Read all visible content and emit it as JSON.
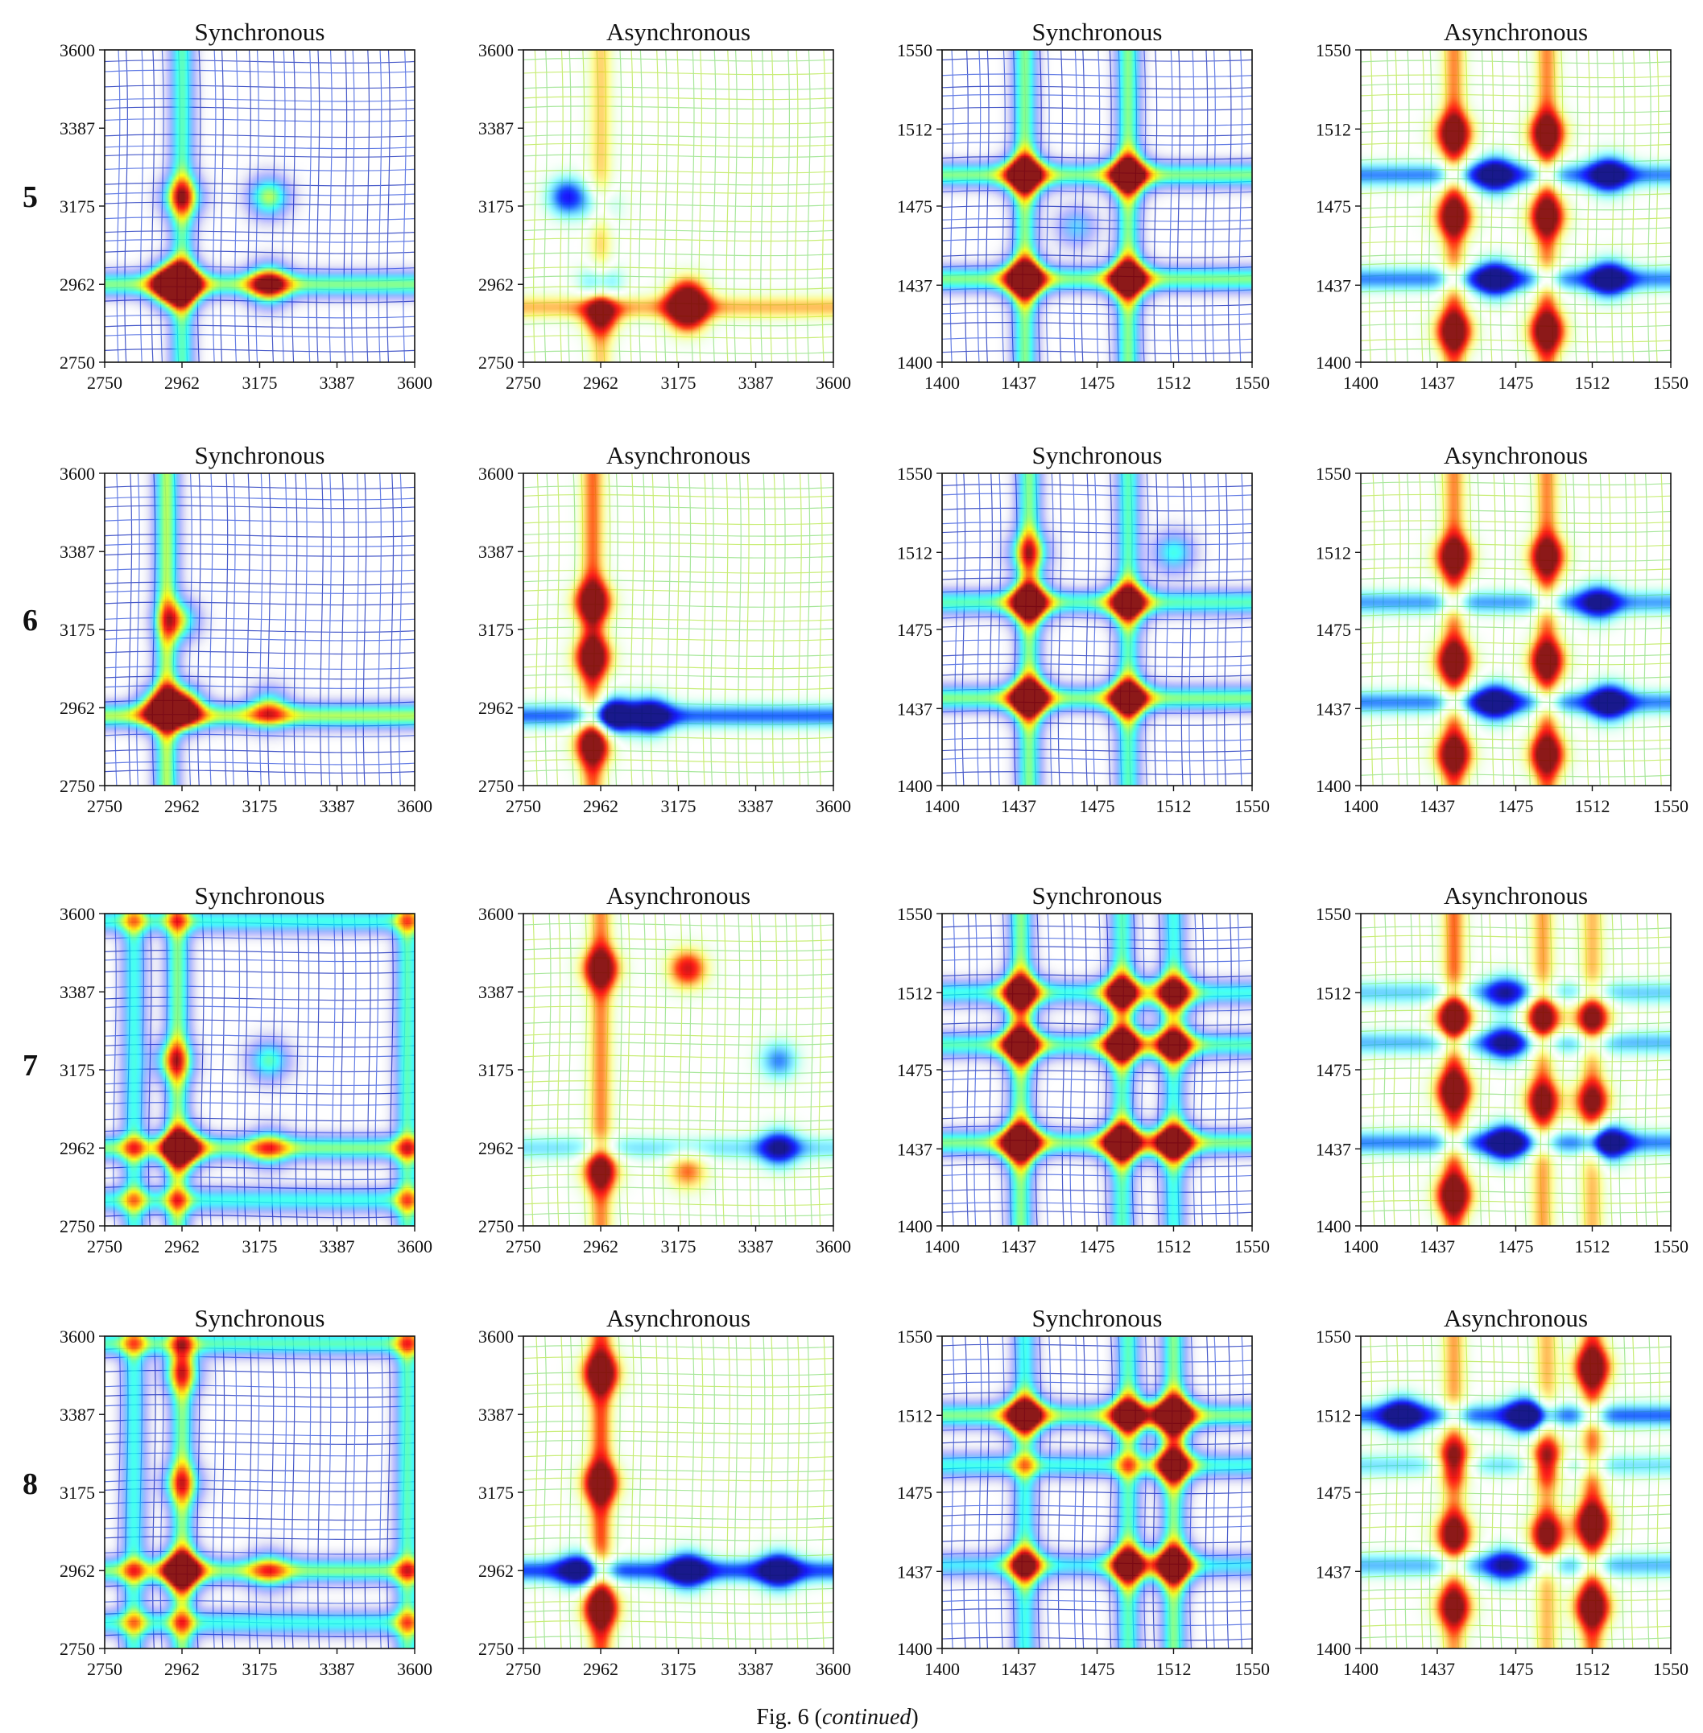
{
  "figure": {
    "caption_prefix": "Fig. 6 (",
    "caption_italic": "continued",
    "caption_suffix": ")"
  },
  "chart_data": [
    {
      "row": "5",
      "type": "heatmap",
      "title": "Synchronous",
      "xlim": [
        2750,
        3600
      ],
      "ylim": [
        2750,
        3600
      ],
      "x_ticks": [
        "2750",
        "2962",
        "3175",
        "3387",
        "3600"
      ],
      "y_ticks": [
        "2750",
        "2962",
        "3175",
        "3387",
        "3600"
      ],
      "line_colors": [
        "#0b24b8",
        "#3355dd"
      ],
      "peaks": [
        [
          2962,
          2962,
          1.0
        ],
        [
          2930,
          2962,
          0.85
        ],
        [
          3200,
          2962,
          0.75
        ],
        [
          2962,
          3200,
          0.6
        ],
        [
          3200,
          3200,
          0.55
        ]
      ],
      "bands_x": [
        [
          2962,
          0.45
        ]
      ],
      "bands_y": [
        [
          2962,
          0.5
        ]
      ]
    },
    {
      "row": "5",
      "type": "heatmap",
      "title": "Asynchronous",
      "xlim": [
        2750,
        3600
      ],
      "ylim": [
        2750,
        3600
      ],
      "x_ticks": [
        "2750",
        "2962",
        "3175",
        "3387",
        "3600"
      ],
      "y_ticks": [
        "2750",
        "2962",
        "3175",
        "3387",
        "3600"
      ],
      "line_colors": [
        "#8be07a",
        "#b7e84a"
      ],
      "peaks": [
        [
          3200,
          2930,
          0.9
        ],
        [
          3200,
          2880,
          0.9
        ],
        [
          2962,
          2880,
          0.75
        ],
        [
          2870,
          3200,
          -0.75
        ],
        [
          2962,
          2962,
          -0.7
        ],
        [
          2962,
          3175,
          -0.4
        ]
      ],
      "bands_x": [
        [
          2962,
          0.4
        ]
      ],
      "bands_y": [
        [
          2900,
          0.45
        ]
      ]
    },
    {
      "row": "5",
      "type": "heatmap",
      "title": "Synchronous",
      "xlim": [
        1400,
        1550
      ],
      "ylim": [
        1400,
        1550
      ],
      "x_ticks": [
        "1400",
        "1437",
        "1475",
        "1512",
        "1550"
      ],
      "y_ticks": [
        "1400",
        "1437",
        "1475",
        "1512",
        "1550"
      ],
      "line_colors": [
        "#0b24b8",
        "#3355dd"
      ],
      "peaks": [
        [
          1440,
          1440,
          1.0
        ],
        [
          1490,
          1440,
          0.9
        ],
        [
          1440,
          1490,
          0.9
        ],
        [
          1490,
          1490,
          0.85
        ],
        [
          1465,
          1465,
          0.3
        ]
      ],
      "bands_x": [
        [
          1440,
          0.5
        ],
        [
          1490,
          0.5
        ]
      ],
      "bands_y": [
        [
          1440,
          0.5
        ],
        [
          1490,
          0.5
        ]
      ]
    },
    {
      "row": "5",
      "type": "heatmap",
      "title": "Asynchronous",
      "xlim": [
        1400,
        1550
      ],
      "ylim": [
        1400,
        1550
      ],
      "x_ticks": [
        "1400",
        "1437",
        "1475",
        "1512",
        "1550"
      ],
      "y_ticks": [
        "1400",
        "1437",
        "1475",
        "1512",
        "1550"
      ],
      "line_colors": [
        "#8be07a",
        "#b7e84a"
      ],
      "peaks": [
        [
          1445,
          1510,
          0.95
        ],
        [
          1490,
          1510,
          0.95
        ],
        [
          1445,
          1470,
          0.9
        ],
        [
          1490,
          1470,
          0.9
        ],
        [
          1445,
          1415,
          0.95
        ],
        [
          1490,
          1415,
          0.95
        ],
        [
          1465,
          1490,
          -0.85
        ],
        [
          1520,
          1490,
          -0.85
        ],
        [
          1465,
          1440,
          -0.85
        ],
        [
          1520,
          1440,
          -0.85
        ]
      ],
      "bands_x": [
        [
          1445,
          0.55
        ],
        [
          1490,
          0.55
        ]
      ],
      "bands_y": [
        [
          1490,
          -0.55
        ],
        [
          1440,
          -0.55
        ]
      ]
    },
    {
      "row": "6",
      "type": "heatmap",
      "title": "Synchronous",
      "xlim": [
        2750,
        3600
      ],
      "ylim": [
        2750,
        3600
      ],
      "x_ticks": [
        "2750",
        "2962",
        "3175",
        "3387",
        "3600"
      ],
      "y_ticks": [
        "2750",
        "2962",
        "3175",
        "3387",
        "3600"
      ],
      "line_colors": [
        "#0b24b8",
        "#3355dd"
      ],
      "peaks": [
        [
          2962,
          2962,
          1.0
        ],
        [
          2900,
          2962,
          0.75
        ],
        [
          2950,
          3200,
          0.55
        ],
        [
          3200,
          2962,
          0.45
        ]
      ],
      "bands_x": [
        [
          2920,
          0.55
        ]
      ],
      "bands_y": [
        [
          2940,
          0.55
        ]
      ]
    },
    {
      "row": "6",
      "type": "heatmap",
      "title": "Asynchronous",
      "xlim": [
        2750,
        3600
      ],
      "ylim": [
        2750,
        3600
      ],
      "x_ticks": [
        "2750",
        "2962",
        "3175",
        "3387",
        "3600"
      ],
      "y_ticks": [
        "2750",
        "2962",
        "3175",
        "3387",
        "3600"
      ],
      "line_colors": [
        "#8be07a",
        "#b7e84a"
      ],
      "peaks": [
        [
          2940,
          3250,
          1.0
        ],
        [
          2940,
          3100,
          0.95
        ],
        [
          2940,
          2860,
          0.9
        ],
        [
          3100,
          2940,
          -0.85
        ],
        [
          3000,
          2940,
          -0.9
        ]
      ],
      "bands_x": [
        [
          2940,
          0.6
        ]
      ],
      "bands_y": [
        [
          2940,
          -0.6
        ]
      ]
    },
    {
      "row": "6",
      "type": "heatmap",
      "title": "Synchronous",
      "xlim": [
        1400,
        1550
      ],
      "ylim": [
        1400,
        1550
      ],
      "x_ticks": [
        "1400",
        "1437",
        "1475",
        "1512",
        "1550"
      ],
      "y_ticks": [
        "1400",
        "1437",
        "1475",
        "1512",
        "1550"
      ],
      "line_colors": [
        "#0b24b8",
        "#3355dd"
      ],
      "peaks": [
        [
          1442,
          1442,
          1.0
        ],
        [
          1490,
          1442,
          0.85
        ],
        [
          1442,
          1488,
          0.9
        ],
        [
          1490,
          1488,
          0.8
        ],
        [
          1442,
          1512,
          0.5
        ],
        [
          1512,
          1512,
          0.4
        ]
      ],
      "bands_x": [
        [
          1442,
          0.5
        ],
        [
          1490,
          0.45
        ]
      ],
      "bands_y": [
        [
          1442,
          0.5
        ],
        [
          1488,
          0.45
        ]
      ]
    },
    {
      "row": "6",
      "type": "heatmap",
      "title": "Asynchronous",
      "xlim": [
        1400,
        1550
      ],
      "ylim": [
        1400,
        1550
      ],
      "x_ticks": [
        "1400",
        "1437",
        "1475",
        "1512",
        "1550"
      ],
      "y_ticks": [
        "1400",
        "1437",
        "1475",
        "1512",
        "1550"
      ],
      "line_colors": [
        "#8be07a",
        "#b7e84a"
      ],
      "peaks": [
        [
          1445,
          1510,
          0.95
        ],
        [
          1490,
          1510,
          0.9
        ],
        [
          1445,
          1460,
          0.95
        ],
        [
          1490,
          1460,
          0.9
        ],
        [
          1445,
          1415,
          0.9
        ],
        [
          1490,
          1415,
          0.9
        ],
        [
          1465,
          1440,
          -0.9
        ],
        [
          1520,
          1440,
          -0.9
        ],
        [
          1515,
          1488,
          -0.7
        ]
      ],
      "bands_x": [
        [
          1445,
          0.55
        ],
        [
          1490,
          0.55
        ]
      ],
      "bands_y": [
        [
          1488,
          -0.5
        ],
        [
          1440,
          -0.55
        ]
      ]
    },
    {
      "row": "7",
      "type": "heatmap",
      "title": "Synchronous",
      "xlim": [
        2750,
        3600
      ],
      "ylim": [
        2750,
        3600
      ],
      "x_ticks": [
        "2750",
        "2962",
        "3175",
        "3387",
        "3600"
      ],
      "y_ticks": [
        "2750",
        "2962",
        "3175",
        "3387",
        "3600"
      ],
      "line_colors": [
        "#0b24b8",
        "#3355dd"
      ],
      "peaks": [
        [
          2962,
          2962,
          0.95
        ],
        [
          2940,
          3200,
          0.5
        ],
        [
          3200,
          3200,
          0.45
        ],
        [
          3200,
          2962,
          0.4
        ]
      ],
      "bands_x": [
        [
          2950,
          0.5
        ],
        [
          3580,
          0.45
        ],
        [
          2830,
          0.4
        ]
      ],
      "bands_y": [
        [
          2962,
          0.5
        ],
        [
          3580,
          0.4
        ],
        [
          2820,
          0.4
        ]
      ]
    },
    {
      "row": "7",
      "type": "heatmap",
      "title": "Asynchronous",
      "xlim": [
        2750,
        3600
      ],
      "ylim": [
        2750,
        3600
      ],
      "x_ticks": [
        "2750",
        "2962",
        "3175",
        "3387",
        "3600"
      ],
      "y_ticks": [
        "2750",
        "2962",
        "3175",
        "3387",
        "3600"
      ],
      "line_colors": [
        "#8be07a",
        "#b7e84a"
      ],
      "peaks": [
        [
          2962,
          3450,
          0.95
        ],
        [
          3200,
          3450,
          0.85
        ],
        [
          2962,
          2900,
          0.8
        ],
        [
          3200,
          2900,
          0.6
        ],
        [
          3450,
          3200,
          -0.55
        ],
        [
          3450,
          2962,
          -0.75
        ]
      ],
      "bands_x": [
        [
          2962,
          0.55
        ]
      ],
      "bands_y": [
        [
          2962,
          -0.35
        ]
      ]
    },
    {
      "row": "7",
      "type": "heatmap",
      "title": "Synchronous",
      "xlim": [
        1400,
        1550
      ],
      "ylim": [
        1400,
        1550
      ],
      "x_ticks": [
        "1400",
        "1437",
        "1475",
        "1512",
        "1550"
      ],
      "y_ticks": [
        "1400",
        "1437",
        "1475",
        "1512",
        "1550"
      ],
      "line_colors": [
        "#0b24b8",
        "#3355dd"
      ],
      "peaks": [
        [
          1438,
          1440,
          1.0
        ],
        [
          1487,
          1440,
          0.95
        ],
        [
          1512,
          1440,
          0.85
        ],
        [
          1438,
          1487,
          0.85
        ],
        [
          1487,
          1487,
          0.8
        ],
        [
          1512,
          1487,
          0.7
        ],
        [
          1438,
          1512,
          0.75
        ],
        [
          1487,
          1512,
          0.7
        ],
        [
          1512,
          1512,
          0.65
        ]
      ],
      "bands_x": [
        [
          1438,
          0.5
        ],
        [
          1487,
          0.45
        ],
        [
          1512,
          0.4
        ]
      ],
      "bands_y": [
        [
          1440,
          0.5
        ],
        [
          1487,
          0.45
        ],
        [
          1512,
          0.4
        ]
      ]
    },
    {
      "row": "7",
      "type": "heatmap",
      "title": "Asynchronous",
      "xlim": [
        1400,
        1550
      ],
      "ylim": [
        1400,
        1550
      ],
      "x_ticks": [
        "1400",
        "1437",
        "1475",
        "1512",
        "1550"
      ],
      "y_ticks": [
        "1400",
        "1437",
        "1475",
        "1512",
        "1550"
      ],
      "line_colors": [
        "#8be07a",
        "#b7e84a"
      ],
      "peaks": [
        [
          1445,
          1500,
          0.95
        ],
        [
          1445,
          1465,
          0.95
        ],
        [
          1445,
          1415,
          0.95
        ],
        [
          1488,
          1500,
          0.85
        ],
        [
          1488,
          1460,
          0.8
        ],
        [
          1512,
          1500,
          0.8
        ],
        [
          1512,
          1460,
          0.75
        ],
        [
          1470,
          1440,
          -0.9
        ],
        [
          1520,
          1440,
          -0.85
        ],
        [
          1470,
          1512,
          -0.6
        ],
        [
          1470,
          1488,
          -0.7
        ]
      ],
      "bands_x": [
        [
          1445,
          0.6
        ],
        [
          1488,
          0.5
        ],
        [
          1512,
          0.45
        ]
      ],
      "bands_y": [
        [
          1440,
          -0.55
        ],
        [
          1488,
          -0.45
        ],
        [
          1512,
          -0.4
        ]
      ]
    },
    {
      "row": "8",
      "type": "heatmap",
      "title": "Synchronous",
      "xlim": [
        2750,
        3600
      ],
      "ylim": [
        2750,
        3600
      ],
      "x_ticks": [
        "2750",
        "2962",
        "3175",
        "3387",
        "3600"
      ],
      "y_ticks": [
        "2750",
        "2962",
        "3175",
        "3387",
        "3600"
      ],
      "line_colors": [
        "#0b24b8",
        "#3355dd"
      ],
      "peaks": [
        [
          2962,
          2962,
          0.95
        ],
        [
          2962,
          3500,
          0.45
        ],
        [
          2962,
          3200,
          0.45
        ],
        [
          3200,
          2962,
          0.4
        ]
      ],
      "bands_x": [
        [
          2962,
          0.5
        ],
        [
          3580,
          0.45
        ],
        [
          2830,
          0.4
        ]
      ],
      "bands_y": [
        [
          2962,
          0.5
        ],
        [
          3580,
          0.45
        ],
        [
          2820,
          0.4
        ]
      ]
    },
    {
      "row": "8",
      "type": "heatmap",
      "title": "Asynchronous",
      "xlim": [
        2750,
        3600
      ],
      "ylim": [
        2750,
        3600
      ],
      "x_ticks": [
        "2750",
        "2962",
        "3175",
        "3387",
        "3600"
      ],
      "y_ticks": [
        "2750",
        "2962",
        "3175",
        "3387",
        "3600"
      ],
      "line_colors": [
        "#8be07a",
        "#b7e84a"
      ],
      "peaks": [
        [
          2962,
          3500,
          1.0
        ],
        [
          2962,
          3200,
          0.95
        ],
        [
          2962,
          2860,
          0.95
        ],
        [
          3200,
          2962,
          -0.85
        ],
        [
          3450,
          2962,
          -0.85
        ],
        [
          2900,
          2962,
          -0.7
        ]
      ],
      "bands_x": [
        [
          2962,
          0.65
        ]
      ],
      "bands_y": [
        [
          2962,
          -0.65
        ]
      ]
    },
    {
      "row": "8",
      "type": "heatmap",
      "title": "Synchronous",
      "xlim": [
        1400,
        1550
      ],
      "ylim": [
        1400,
        1550
      ],
      "x_ticks": [
        "1400",
        "1437",
        "1475",
        "1512",
        "1550"
      ],
      "y_ticks": [
        "1400",
        "1437",
        "1475",
        "1512",
        "1550"
      ],
      "line_colors": [
        "#0b24b8",
        "#3355dd"
      ],
      "peaks": [
        [
          1440,
          1512,
          0.85
        ],
        [
          1490,
          1512,
          0.7
        ],
        [
          1512,
          1512,
          1.0
        ],
        [
          1512,
          1488,
          0.7
        ],
        [
          1512,
          1440,
          0.9
        ],
        [
          1490,
          1440,
          0.8
        ],
        [
          1440,
          1440,
          0.6
        ]
      ],
      "bands_x": [
        [
          1440,
          0.4
        ],
        [
          1490,
          0.45
        ],
        [
          1512,
          0.5
        ]
      ],
      "bands_y": [
        [
          1512,
          0.5
        ],
        [
          1488,
          0.4
        ],
        [
          1440,
          0.35
        ]
      ]
    },
    {
      "row": "8",
      "type": "heatmap",
      "title": "Asynchronous",
      "xlim": [
        1400,
        1550
      ],
      "ylim": [
        1400,
        1550
      ],
      "x_ticks": [
        "1400",
        "1437",
        "1475",
        "1512",
        "1550"
      ],
      "y_ticks": [
        "1400",
        "1437",
        "1475",
        "1512",
        "1550"
      ],
      "line_colors": [
        "#8be07a",
        "#b7e84a"
      ],
      "peaks": [
        [
          1512,
          1535,
          0.95
        ],
        [
          1512,
          1460,
          0.95
        ],
        [
          1512,
          1420,
          0.95
        ],
        [
          1445,
          1490,
          0.85
        ],
        [
          1445,
          1455,
          0.85
        ],
        [
          1490,
          1490,
          0.8
        ],
        [
          1490,
          1455,
          0.8
        ],
        [
          1445,
          1420,
          0.85
        ],
        [
          1480,
          1512,
          -0.9
        ],
        [
          1420,
          1512,
          -0.85
        ],
        [
          1470,
          1440,
          -0.6
        ]
      ],
      "bands_x": [
        [
          1445,
          0.5
        ],
        [
          1490,
          0.45
        ],
        [
          1512,
          0.6
        ]
      ],
      "bands_y": [
        [
          1512,
          -0.6
        ],
        [
          1440,
          -0.45
        ],
        [
          1488,
          -0.35
        ]
      ]
    }
  ]
}
